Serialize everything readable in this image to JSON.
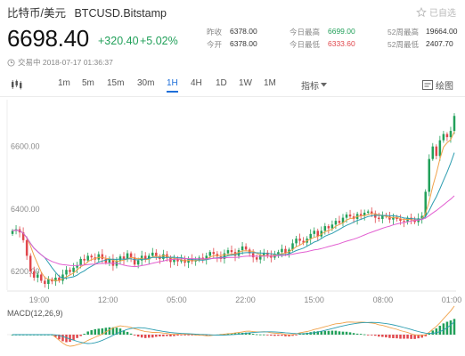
{
  "header": {
    "title": "比特币/美元",
    "symbol": "BTCUSD.Bitstamp",
    "favorite_label": "已自选",
    "price": "6698.40",
    "change": "+320.40",
    "change_pct": "+5.02%",
    "status_time": "交易中 2018-07-17 01:36:37"
  },
  "stats": [
    {
      "label": "昨收",
      "value": "6378.00",
      "tone": "neutral"
    },
    {
      "label": "今开",
      "value": "6378.00",
      "tone": "neutral"
    },
    {
      "label": "今日最高",
      "value": "6699.00",
      "tone": "up"
    },
    {
      "label": "今日最低",
      "value": "6333.60",
      "tone": "down"
    },
    {
      "label": "52周最高",
      "value": "19664.00",
      "tone": "neutral"
    },
    {
      "label": "52周最低",
      "value": "2407.70",
      "tone": "neutral"
    }
  ],
  "toolbar": {
    "intervals": [
      "1m",
      "5m",
      "15m",
      "30m",
      "1H",
      "4H",
      "1D",
      "1W",
      "1M"
    ],
    "active_interval": "1H",
    "indicator_label": "指标",
    "draw_label": "绘图"
  },
  "colors": {
    "up": "#22a05a",
    "down": "#e0474c",
    "accent": "#1e6fd9"
  },
  "chart_data": {
    "type": "candlestick",
    "y_ticks": [
      "6600.00",
      "6400.00",
      "6200.00"
    ],
    "x_ticks": [
      "19:00",
      "12:00",
      "05:00",
      "22:00",
      "15:00",
      "08:00",
      "01:00"
    ],
    "ylim": [
      6140,
      6750
    ],
    "closes": [
      6330,
      6335,
      6325,
      6300,
      6250,
      6200,
      6180,
      6190,
      6170,
      6160,
      6175,
      6168,
      6180,
      6170,
      6190,
      6205,
      6198,
      6212,
      6220,
      6240,
      6235,
      6250,
      6245,
      6238,
      6255,
      6240,
      6228,
      6240,
      6218,
      6235,
      6248,
      6240,
      6258,
      6245,
      6222,
      6235,
      6250,
      6238,
      6250,
      6260,
      6248,
      6240,
      6255,
      6245,
      6230,
      6240,
      6232,
      6238,
      6228,
      6240,
      6232,
      6236,
      6244,
      6238,
      6250,
      6262,
      6256,
      6248,
      6240,
      6258,
      6268,
      6262,
      6250,
      6268,
      6280,
      6270,
      6258,
      6245,
      6238,
      6252,
      6260,
      6252,
      6244,
      6255,
      6262,
      6272,
      6258,
      6270,
      6290,
      6305,
      6298,
      6292,
      6305,
      6320,
      6330,
      6312,
      6330,
      6345,
      6338,
      6350,
      6362,
      6355,
      6372,
      6382,
      6376,
      6368,
      6384,
      6378,
      6388,
      6392,
      6386,
      6372,
      6368,
      6380,
      6376,
      6366,
      6374,
      6368,
      6362,
      6360,
      6372,
      6366,
      6358,
      6370,
      6378,
      6455,
      6560,
      6600,
      6570,
      6620,
      6640,
      6630,
      6650,
      6698
    ],
    "macd_label": "MACD(12,26,9)"
  }
}
